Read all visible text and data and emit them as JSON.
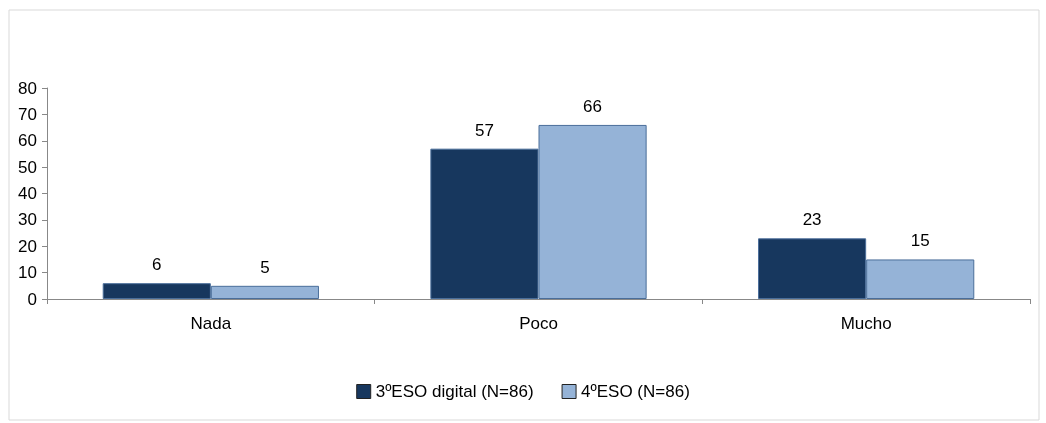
{
  "chart_data": {
    "type": "bar",
    "categories": [
      "Nada",
      "Poco",
      "Mucho"
    ],
    "series": [
      {
        "name": "3ºESO digital (N=86)",
        "color": "#17375e",
        "values": [
          6,
          57,
          23
        ]
      },
      {
        "name": "4ºESO (N=86)",
        "color": "#95b3d7",
        "values": [
          5,
          66,
          15
        ]
      }
    ],
    "ylim": [
      0,
      80
    ],
    "yticks": [
      0,
      10,
      20,
      30,
      40,
      50,
      60,
      70,
      80
    ],
    "grid": false,
    "legend": "bottom",
    "data_labels": true
  }
}
